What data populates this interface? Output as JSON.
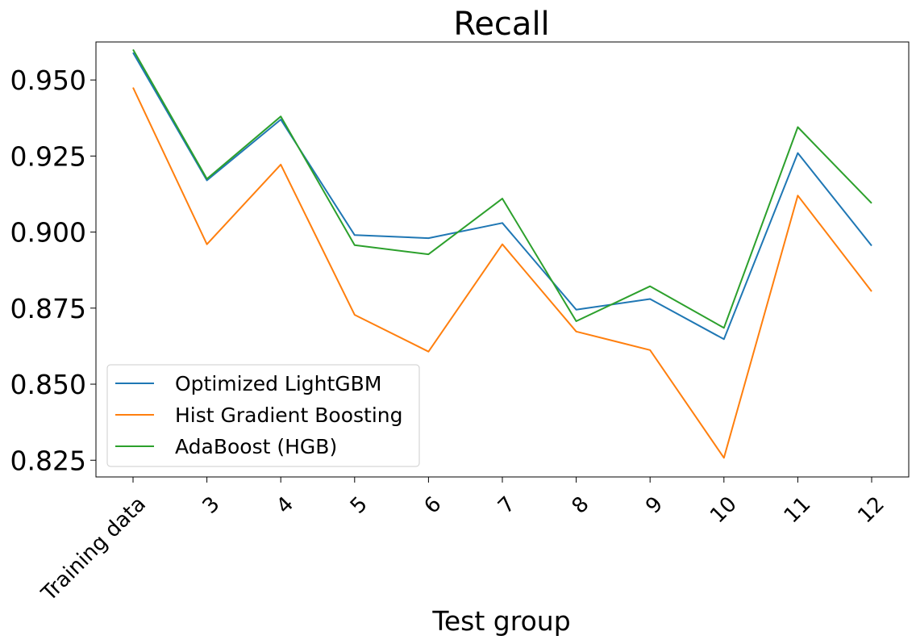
{
  "chart_data": {
    "type": "line",
    "title": "Recall",
    "xlabel": "Test group",
    "ylabel": "",
    "categories": [
      "Training data",
      "3",
      "4",
      "5",
      "6",
      "7",
      "8",
      "9",
      "10",
      "11",
      "12"
    ],
    "ylim": [
      0.8195,
      0.9625
    ],
    "yticks": [
      0.825,
      0.85,
      0.875,
      0.9,
      0.925,
      0.95
    ],
    "ytick_labels": [
      "0.825",
      "0.850",
      "0.875",
      "0.900",
      "0.925",
      "0.950"
    ],
    "grid": false,
    "legend_position": "lower-left",
    "series": [
      {
        "name": "Optimized LightGBM",
        "color": "#1f77b4",
        "values": [
          0.959,
          0.917,
          0.937,
          0.899,
          0.898,
          0.903,
          0.8745,
          0.878,
          0.8648,
          0.926,
          0.8955
        ]
      },
      {
        "name": "Hist Gradient Boosting",
        "color": "#ff7f0e",
        "values": [
          0.9475,
          0.896,
          0.9222,
          0.8728,
          0.8607,
          0.896,
          0.8673,
          0.8612,
          0.8258,
          0.912,
          0.8805
        ]
      },
      {
        "name": "AdaBoost (HGB)",
        "color": "#2ca02c",
        "values": [
          0.96,
          0.9175,
          0.938,
          0.8957,
          0.8927,
          0.911,
          0.8707,
          0.8822,
          0.8685,
          0.9345,
          0.9095
        ]
      }
    ]
  }
}
